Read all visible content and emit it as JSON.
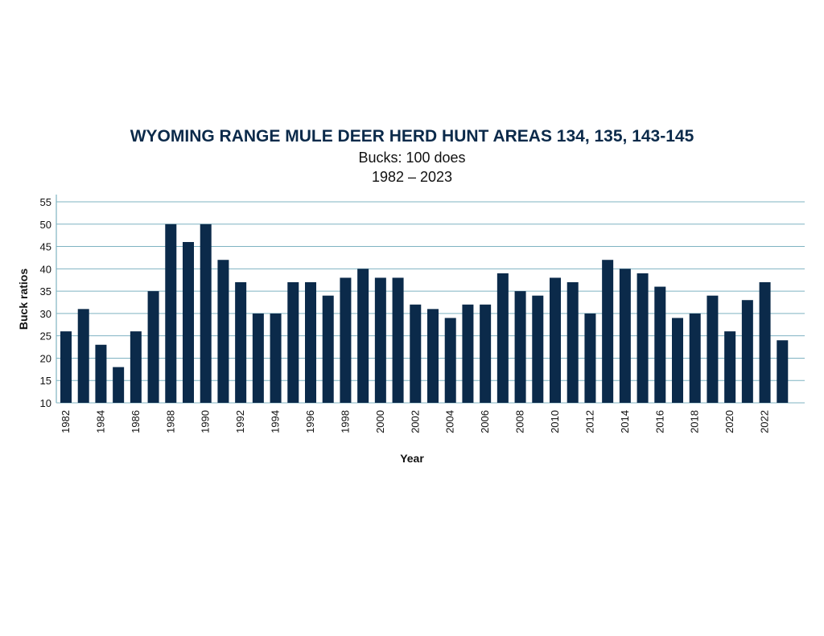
{
  "chart_data": {
    "type": "bar",
    "title": "WYOMING RANGE MULE DEER HERD HUNT AREAS 134, 135, 143-145",
    "subtitle": "Bucks: 100 does",
    "subtitle2": "1982 – 2023",
    "xlabel": "Year",
    "ylabel": "Buck ratios",
    "ylim": [
      10,
      55
    ],
    "yticks": [
      10,
      15,
      20,
      25,
      30,
      35,
      40,
      45,
      50,
      55
    ],
    "grid": true,
    "bar_color": "#0b2a4a",
    "grid_color": "#7fb3c2",
    "categories": [
      "1982",
      "1983",
      "1984",
      "1985",
      "1986",
      "1987",
      "1988",
      "1989",
      "1990",
      "1991",
      "1992",
      "1993",
      "1994",
      "1995",
      "1996",
      "1997",
      "1998",
      "1999",
      "2000",
      "2001",
      "2002",
      "2003",
      "2004",
      "2005",
      "2006",
      "2007",
      "2008",
      "2009",
      "2010",
      "2011",
      "2012",
      "2013",
      "2014",
      "2015",
      "2016",
      "2017",
      "2018",
      "2019",
      "2020",
      "2021",
      "2022",
      "2023"
    ],
    "tick_labels": [
      "1982",
      "1984",
      "1986",
      "1988",
      "1990",
      "1992",
      "1994",
      "1996",
      "1998",
      "2000",
      "2002",
      "2004",
      "2006",
      "2008",
      "2010",
      "2012",
      "2014",
      "2016",
      "2018",
      "2020",
      "2022"
    ],
    "values": [
      26,
      31,
      23,
      18,
      26,
      35,
      50,
      46,
      50,
      42,
      37,
      30,
      30,
      37,
      37,
      34,
      38,
      40,
      38,
      38,
      32,
      31,
      29,
      32,
      32,
      39,
      35,
      34,
      38,
      37,
      30,
      42,
      40,
      39,
      36,
      29,
      30,
      34,
      26,
      33,
      37,
      24
    ]
  }
}
